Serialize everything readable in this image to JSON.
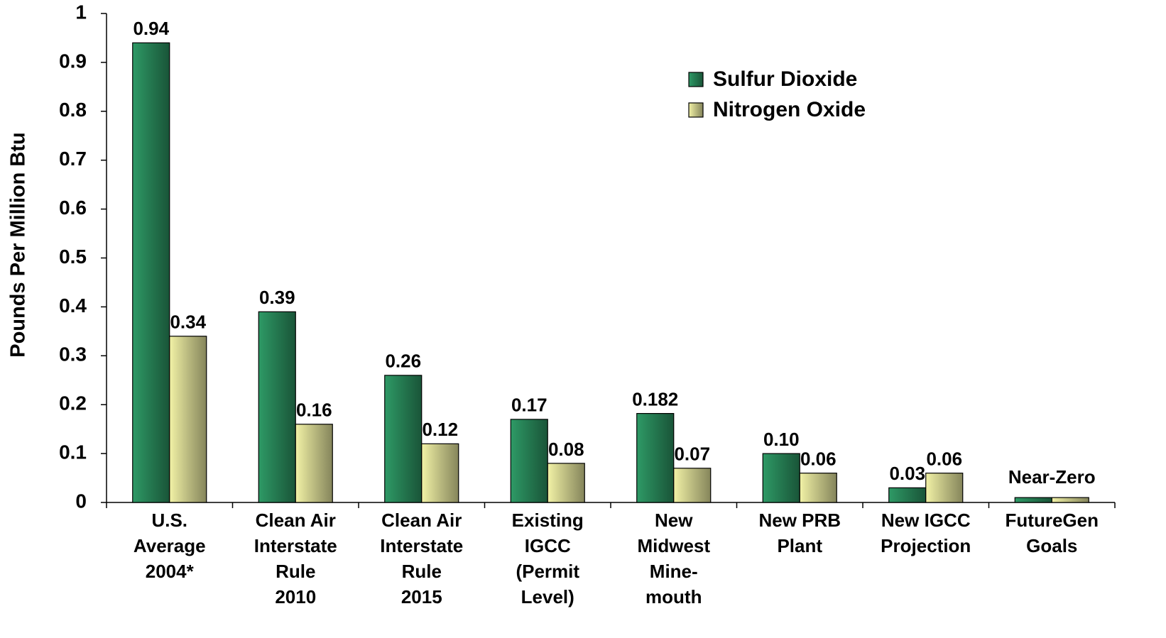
{
  "chart_data": {
    "type": "bar",
    "y_label": "Pounds Per Million Btu",
    "categories": [
      "U.S.\nAverage\n2004*",
      "Clean Air\nInterstate\nRule\n2010",
      "Clean Air\nInterstate\nRule\n2015",
      "Existing\nIGCC\n(Permit\nLevel)",
      "New\nMidwest\nMine-\nmouth",
      "New PRB\nPlant",
      "New IGCC\nProjection",
      "FutureGen\nGoals"
    ],
    "series": [
      {
        "name": "Sulfur Dioxide",
        "color": "#2e9a66",
        "values": [
          0.94,
          0.39,
          0.26,
          0.17,
          0.182,
          0.1,
          0.03,
          0.01
        ],
        "value_labels": [
          "0.94",
          "0.39",
          "0.26",
          "0.17",
          "0.182",
          "0.10",
          "0.03",
          null
        ]
      },
      {
        "name": "Nitrogen Oxide",
        "color": "#f2f2a6",
        "values": [
          0.34,
          0.16,
          0.12,
          0.08,
          0.07,
          0.06,
          0.06,
          0.01
        ],
        "value_labels": [
          "0.34",
          "0.16",
          "0.12",
          "0.08",
          "0.07",
          "0.06",
          "0.06",
          null
        ]
      }
    ],
    "annotations": [
      {
        "text": "Near-Zero",
        "category": 7
      }
    ],
    "ylim": [
      0,
      1
    ],
    "yticks": [
      0,
      0.1,
      0.2,
      0.3,
      0.4,
      0.5,
      0.6,
      0.7,
      0.8,
      0.9,
      1
    ],
    "legend": "upper right",
    "grid": false
  }
}
